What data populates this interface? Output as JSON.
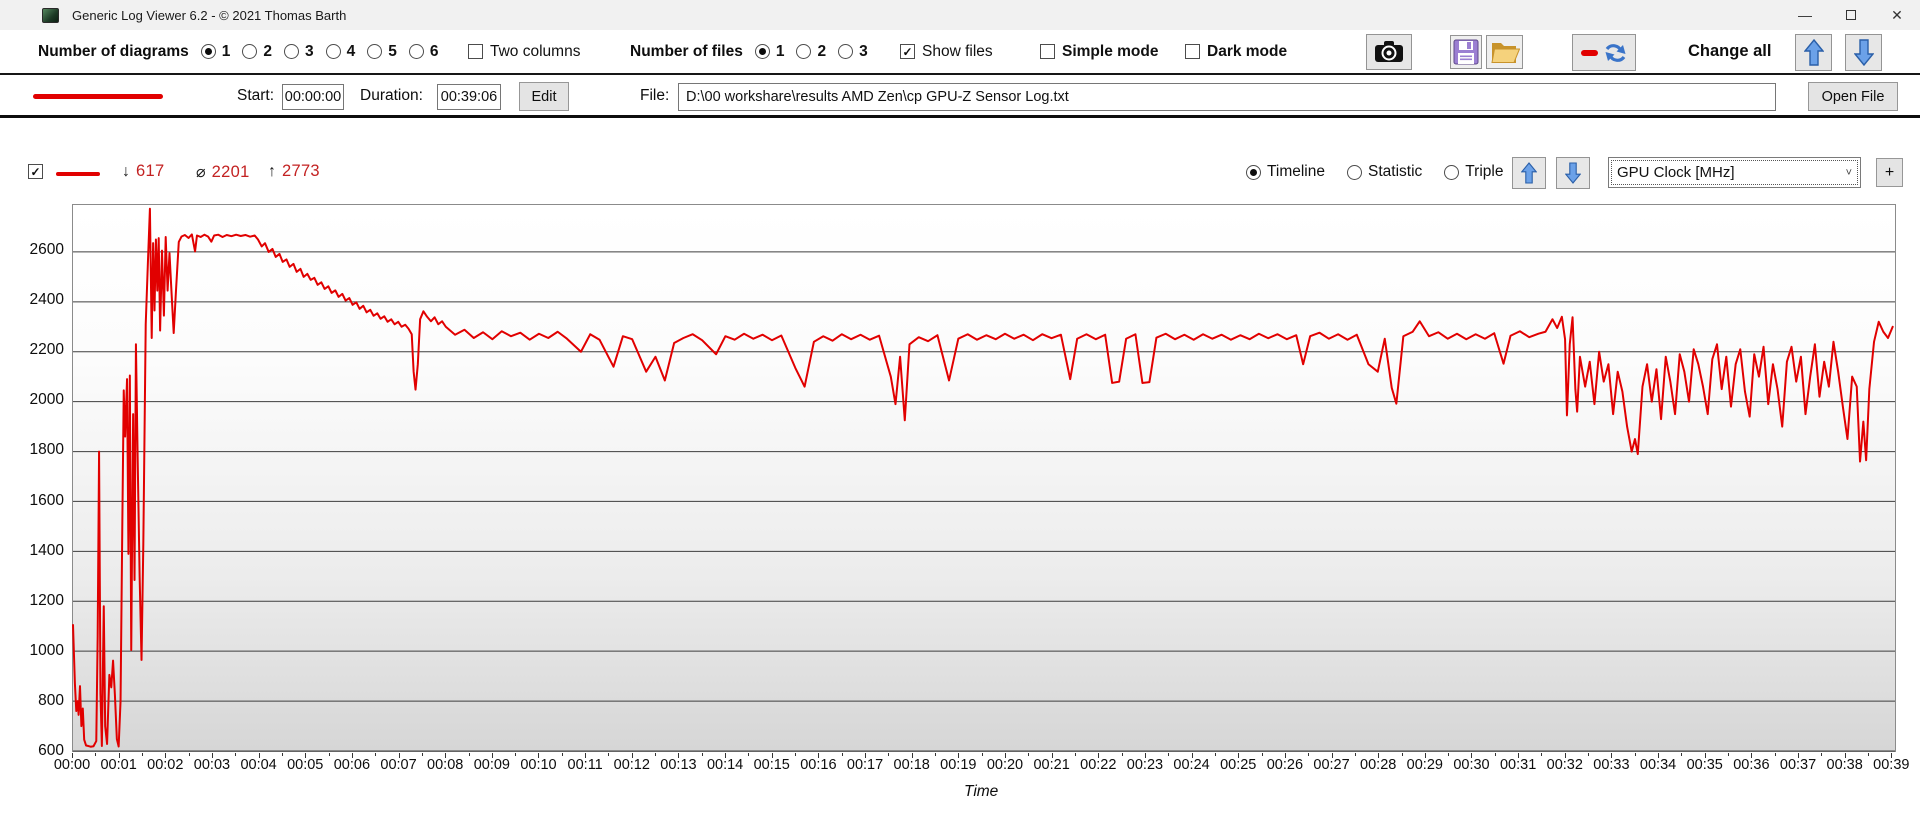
{
  "window": {
    "title": "Generic Log Viewer 6.2 - © 2021 Thomas Barth",
    "minimize_glyph": "—",
    "close_glyph": "✕"
  },
  "toolbar": {
    "diagrams": {
      "label": "Number of diagrams",
      "options": [
        "1",
        "2",
        "3",
        "4",
        "5",
        "6"
      ],
      "selected": "1"
    },
    "two_columns": {
      "label": "Two columns",
      "checked": false
    },
    "files": {
      "label": "Number of files",
      "options": [
        "1",
        "2",
        "3"
      ],
      "selected": "1"
    },
    "show_files": {
      "label": "Show files",
      "checked": true
    },
    "simple_mode": {
      "label": "Simple mode",
      "checked": false
    },
    "dark_mode": {
      "label": "Dark mode",
      "checked": false
    },
    "change_all_label": "Change all"
  },
  "file_row": {
    "start_label": "Start:",
    "start_value": "00:00:00",
    "duration_label": "Duration:",
    "duration_value": "00:39:06",
    "edit_label": "Edit",
    "file_label": "File:",
    "file_path": "D:\\00 workshare\\results AMD Zen\\cp GPU-Z Sensor Log.txt",
    "open_file_label": "Open File"
  },
  "diagram": {
    "series_checkbox_checked": true,
    "stats": {
      "min_sym": "↓",
      "min": "617",
      "avg_sym": "⌀",
      "avg": "2201",
      "max_sym": "↑",
      "max": "2773"
    },
    "view_modes": [
      {
        "label": "Timeline",
        "selected": true
      },
      {
        "label": "Statistic",
        "selected": false
      },
      {
        "label": "Triple",
        "selected": false
      }
    ],
    "channel_value": "GPU Clock [MHz]",
    "channel_chevron": "˅",
    "add_button_label": "+"
  },
  "colors": {
    "line": "#e10000",
    "stat_number": "#c32222"
  },
  "chart_data": {
    "type": "line",
    "title": "",
    "xlabel": "Time",
    "ylabel": "GPU Clock [MHz]",
    "legend_position": "none",
    "grid": "horizontal",
    "xlim": [
      0,
      39.1
    ],
    "ylim": [
      600,
      2788
    ],
    "y_ticks": [
      600,
      800,
      1000,
      1200,
      1400,
      1600,
      1800,
      2000,
      2200,
      2400,
      2600
    ],
    "x_tick_labels": [
      "00:00",
      "00:01",
      "00:02",
      "00:03",
      "00:04",
      "00:05",
      "00:06",
      "00:07",
      "00:08",
      "00:09",
      "00:10",
      "00:11",
      "00:12",
      "00:13",
      "00:14",
      "00:15",
      "00:16",
      "00:17",
      "00:18",
      "00:19",
      "00:20",
      "00:21",
      "00:22",
      "00:23",
      "00:24",
      "00:25",
      "00:26",
      "00:27",
      "00:28",
      "00:29",
      "00:30",
      "00:31",
      "00:32",
      "00:33",
      "00:34",
      "00:35",
      "00:36",
      "00:37",
      "00:38",
      "00:39"
    ],
    "series_name": "GPU Clock",
    "stats": {
      "min": 617,
      "avg": 2201,
      "max": 2773
    },
    "points": [
      [
        0.0,
        1105
      ],
      [
        0.04,
        870
      ],
      [
        0.07,
        760
      ],
      [
        0.1,
        800
      ],
      [
        0.12,
        745
      ],
      [
        0.15,
        860
      ],
      [
        0.18,
        700
      ],
      [
        0.21,
        770
      ],
      [
        0.24,
        645
      ],
      [
        0.28,
        622
      ],
      [
        0.33,
        620
      ],
      [
        0.38,
        617
      ],
      [
        0.44,
        619
      ],
      [
        0.5,
        640
      ],
      [
        0.53,
        1060
      ],
      [
        0.56,
        1800
      ],
      [
        0.59,
        830
      ],
      [
        0.62,
        620
      ],
      [
        0.66,
        1180
      ],
      [
        0.69,
        700
      ],
      [
        0.73,
        628
      ],
      [
        0.78,
        905
      ],
      [
        0.82,
        855
      ],
      [
        0.86,
        962
      ],
      [
        0.9,
        820
      ],
      [
        0.94,
        648
      ],
      [
        0.98,
        618
      ],
      [
        1.02,
        800
      ],
      [
        1.06,
        1520
      ],
      [
        1.09,
        2045
      ],
      [
        1.12,
        1860
      ],
      [
        1.16,
        2090
      ],
      [
        1.19,
        1390
      ],
      [
        1.22,
        2105
      ],
      [
        1.25,
        1005
      ],
      [
        1.29,
        1950
      ],
      [
        1.32,
        1285
      ],
      [
        1.35,
        2230
      ],
      [
        1.39,
        1755
      ],
      [
        1.43,
        1300
      ],
      [
        1.47,
        965
      ],
      [
        1.51,
        1430
      ],
      [
        1.56,
        2310
      ],
      [
        1.61,
        2570
      ],
      [
        1.65,
        2773
      ],
      [
        1.69,
        2255
      ],
      [
        1.72,
        2635
      ],
      [
        1.75,
        2365
      ],
      [
        1.78,
        2650
      ],
      [
        1.81,
        2445
      ],
      [
        1.84,
        2655
      ],
      [
        1.87,
        2285
      ],
      [
        1.91,
        2605
      ],
      [
        1.95,
        2345
      ],
      [
        1.99,
        2660
      ],
      [
        2.03,
        2445
      ],
      [
        2.07,
        2595
      ],
      [
        2.11,
        2455
      ],
      [
        2.16,
        2275
      ],
      [
        2.21,
        2445
      ],
      [
        2.27,
        2640
      ],
      [
        2.33,
        2662
      ],
      [
        2.4,
        2668
      ],
      [
        2.48,
        2656
      ],
      [
        2.55,
        2670
      ],
      [
        2.62,
        2602
      ],
      [
        2.66,
        2666
      ],
      [
        2.74,
        2660
      ],
      [
        2.82,
        2669
      ],
      [
        2.9,
        2661
      ],
      [
        2.97,
        2641
      ],
      [
        3.03,
        2666
      ],
      [
        3.12,
        2669
      ],
      [
        3.21,
        2660
      ],
      [
        3.3,
        2668
      ],
      [
        3.4,
        2663
      ],
      [
        3.5,
        2669
      ],
      [
        3.6,
        2664
      ],
      [
        3.7,
        2668
      ],
      [
        3.8,
        2661
      ],
      [
        3.9,
        2666
      ],
      [
        3.97,
        2650
      ],
      [
        4.05,
        2622
      ],
      [
        4.12,
        2635
      ],
      [
        4.2,
        2600
      ],
      [
        4.28,
        2612
      ],
      [
        4.35,
        2580
      ],
      [
        4.43,
        2592
      ],
      [
        4.5,
        2560
      ],
      [
        4.58,
        2570
      ],
      [
        4.65,
        2540
      ],
      [
        4.73,
        2552
      ],
      [
        4.8,
        2520
      ],
      [
        4.88,
        2532
      ],
      [
        4.95,
        2500
      ],
      [
        5.03,
        2512
      ],
      [
        5.1,
        2488
      ],
      [
        5.18,
        2496
      ],
      [
        5.25,
        2468
      ],
      [
        5.33,
        2478
      ],
      [
        5.4,
        2452
      ],
      [
        5.48,
        2462
      ],
      [
        5.55,
        2436
      ],
      [
        5.63,
        2446
      ],
      [
        5.7,
        2420
      ],
      [
        5.78,
        2432
      ],
      [
        5.85,
        2405
      ],
      [
        5.93,
        2415
      ],
      [
        6.0,
        2388
      ],
      [
        6.08,
        2398
      ],
      [
        6.15,
        2372
      ],
      [
        6.23,
        2384
      ],
      [
        6.3,
        2358
      ],
      [
        6.38,
        2368
      ],
      [
        6.45,
        2344
      ],
      [
        6.53,
        2354
      ],
      [
        6.6,
        2332
      ],
      [
        6.68,
        2342
      ],
      [
        6.75,
        2320
      ],
      [
        6.83,
        2330
      ],
      [
        6.9,
        2310
      ],
      [
        6.98,
        2320
      ],
      [
        7.05,
        2300
      ],
      [
        7.13,
        2308
      ],
      [
        7.2,
        2292
      ],
      [
        7.27,
        2270
      ],
      [
        7.31,
        2120
      ],
      [
        7.35,
        2048
      ],
      [
        7.4,
        2150
      ],
      [
        7.45,
        2330
      ],
      [
        7.52,
        2362
      ],
      [
        7.6,
        2340
      ],
      [
        7.68,
        2322
      ],
      [
        7.76,
        2338
      ],
      [
        7.84,
        2310
      ],
      [
        7.92,
        2322
      ],
      [
        8.0,
        2300
      ],
      [
        8.2,
        2268
      ],
      [
        8.4,
        2288
      ],
      [
        8.6,
        2255
      ],
      [
        8.8,
        2278
      ],
      [
        9.0,
        2250
      ],
      [
        9.2,
        2282
      ],
      [
        9.4,
        2262
      ],
      [
        9.6,
        2276
      ],
      [
        9.8,
        2248
      ],
      [
        10.0,
        2272
      ],
      [
        10.2,
        2255
      ],
      [
        10.4,
        2280
      ],
      [
        10.6,
        2252
      ],
      [
        10.9,
        2200
      ],
      [
        11.1,
        2270
      ],
      [
        11.3,
        2248
      ],
      [
        11.6,
        2140
      ],
      [
        11.8,
        2262
      ],
      [
        12.0,
        2250
      ],
      [
        12.3,
        2120
      ],
      [
        12.5,
        2180
      ],
      [
        12.7,
        2085
      ],
      [
        12.9,
        2235
      ],
      [
        13.1,
        2255
      ],
      [
        13.3,
        2270
      ],
      [
        13.5,
        2246
      ],
      [
        13.8,
        2190
      ],
      [
        14.0,
        2262
      ],
      [
        14.2,
        2248
      ],
      [
        14.4,
        2272
      ],
      [
        14.6,
        2252
      ],
      [
        14.8,
        2268
      ],
      [
        15.0,
        2246
      ],
      [
        15.2,
        2265
      ],
      [
        15.5,
        2135
      ],
      [
        15.7,
        2060
      ],
      [
        15.9,
        2240
      ],
      [
        16.1,
        2262
      ],
      [
        16.3,
        2244
      ],
      [
        16.5,
        2270
      ],
      [
        16.7,
        2250
      ],
      [
        16.9,
        2268
      ],
      [
        17.1,
        2248
      ],
      [
        17.3,
        2264
      ],
      [
        17.55,
        2100
      ],
      [
        17.65,
        1990
      ],
      [
        17.75,
        2180
      ],
      [
        17.85,
        1925
      ],
      [
        17.95,
        2230
      ],
      [
        18.15,
        2258
      ],
      [
        18.35,
        2242
      ],
      [
        18.55,
        2266
      ],
      [
        18.8,
        2085
      ],
      [
        19.0,
        2252
      ],
      [
        19.2,
        2270
      ],
      [
        19.4,
        2248
      ],
      [
        19.6,
        2266
      ],
      [
        19.8,
        2250
      ],
      [
        20.0,
        2272
      ],
      [
        20.2,
        2252
      ],
      [
        20.4,
        2268
      ],
      [
        20.6,
        2246
      ],
      [
        20.8,
        2270
      ],
      [
        21.0,
        2254
      ],
      [
        21.2,
        2268
      ],
      [
        21.4,
        2090
      ],
      [
        21.55,
        2252
      ],
      [
        21.75,
        2270
      ],
      [
        21.95,
        2250
      ],
      [
        22.15,
        2268
      ],
      [
        22.3,
        2075
      ],
      [
        22.45,
        2080
      ],
      [
        22.6,
        2252
      ],
      [
        22.8,
        2270
      ],
      [
        22.95,
        2075
      ],
      [
        23.1,
        2078
      ],
      [
        23.25,
        2256
      ],
      [
        23.45,
        2272
      ],
      [
        23.65,
        2250
      ],
      [
        23.85,
        2268
      ],
      [
        24.05,
        2248
      ],
      [
        24.25,
        2270
      ],
      [
        24.45,
        2252
      ],
      [
        24.65,
        2268
      ],
      [
        24.85,
        2248
      ],
      [
        25.05,
        2266
      ],
      [
        25.25,
        2250
      ],
      [
        25.45,
        2272
      ],
      [
        25.65,
        2254
      ],
      [
        25.85,
        2270
      ],
      [
        26.05,
        2250
      ],
      [
        26.25,
        2266
      ],
      [
        26.4,
        2150
      ],
      [
        26.55,
        2262
      ],
      [
        26.75,
        2276
      ],
      [
        26.95,
        2252
      ],
      [
        27.15,
        2270
      ],
      [
        27.35,
        2248
      ],
      [
        27.55,
        2268
      ],
      [
        27.8,
        2150
      ],
      [
        28.0,
        2120
      ],
      [
        28.15,
        2252
      ],
      [
        28.3,
        2055
      ],
      [
        28.4,
        1992
      ],
      [
        28.55,
        2262
      ],
      [
        28.75,
        2280
      ],
      [
        28.9,
        2322
      ],
      [
        29.1,
        2262
      ],
      [
        29.3,
        2278
      ],
      [
        29.5,
        2252
      ],
      [
        29.7,
        2272
      ],
      [
        29.9,
        2250
      ],
      [
        30.1,
        2270
      ],
      [
        30.3,
        2252
      ],
      [
        30.5,
        2274
      ],
      [
        30.7,
        2152
      ],
      [
        30.85,
        2264
      ],
      [
        31.05,
        2282
      ],
      [
        31.25,
        2258
      ],
      [
        31.45,
        2272
      ],
      [
        31.6,
        2280
      ],
      [
        31.75,
        2330
      ],
      [
        31.85,
        2295
      ],
      [
        31.95,
        2340
      ],
      [
        32.02,
        2250
      ],
      [
        32.06,
        1945
      ],
      [
        32.12,
        2230
      ],
      [
        32.18,
        2338
      ],
      [
        32.24,
        2050
      ],
      [
        32.28,
        1960
      ],
      [
        32.34,
        2180
      ],
      [
        32.45,
        2060
      ],
      [
        32.55,
        2160
      ],
      [
        32.65,
        1990
      ],
      [
        32.75,
        2200
      ],
      [
        32.85,
        2080
      ],
      [
        32.95,
        2150
      ],
      [
        33.05,
        1950
      ],
      [
        33.15,
        2120
      ],
      [
        33.25,
        2040
      ],
      [
        33.35,
        1900
      ],
      [
        33.45,
        1800
      ],
      [
        33.52,
        1850
      ],
      [
        33.58,
        1790
      ],
      [
        33.68,
        2060
      ],
      [
        33.78,
        2150
      ],
      [
        33.88,
        2000
      ],
      [
        33.98,
        2130
      ],
      [
        34.08,
        1930
      ],
      [
        34.18,
        2180
      ],
      [
        34.28,
        2080
      ],
      [
        34.38,
        1950
      ],
      [
        34.48,
        2190
      ],
      [
        34.58,
        2120
      ],
      [
        34.68,
        2000
      ],
      [
        34.78,
        2210
      ],
      [
        34.88,
        2150
      ],
      [
        34.98,
        2060
      ],
      [
        35.08,
        1950
      ],
      [
        35.18,
        2170
      ],
      [
        35.28,
        2230
      ],
      [
        35.38,
        2050
      ],
      [
        35.48,
        2180
      ],
      [
        35.58,
        1980
      ],
      [
        35.68,
        2150
      ],
      [
        35.78,
        2210
      ],
      [
        35.88,
        2040
      ],
      [
        35.98,
        1940
      ],
      [
        36.08,
        2190
      ],
      [
        36.18,
        2100
      ],
      [
        36.28,
        2220
      ],
      [
        36.38,
        1990
      ],
      [
        36.48,
        2150
      ],
      [
        36.58,
        2050
      ],
      [
        36.68,
        1900
      ],
      [
        36.78,
        2160
      ],
      [
        36.88,
        2220
      ],
      [
        36.98,
        2080
      ],
      [
        37.08,
        2180
      ],
      [
        37.18,
        1950
      ],
      [
        37.28,
        2100
      ],
      [
        37.38,
        2230
      ],
      [
        37.48,
        2020
      ],
      [
        37.58,
        2160
      ],
      [
        37.68,
        2060
      ],
      [
        37.78,
        2240
      ],
      [
        37.88,
        2120
      ],
      [
        37.98,
        1980
      ],
      [
        38.08,
        1850
      ],
      [
        38.18,
        2100
      ],
      [
        38.28,
        2060
      ],
      [
        38.35,
        1760
      ],
      [
        38.42,
        1920
      ],
      [
        38.48,
        1765
      ],
      [
        38.55,
        2050
      ],
      [
        38.65,
        2240
      ],
      [
        38.75,
        2320
      ],
      [
        38.85,
        2280
      ],
      [
        38.95,
        2255
      ],
      [
        39.05,
        2300
      ]
    ]
  }
}
